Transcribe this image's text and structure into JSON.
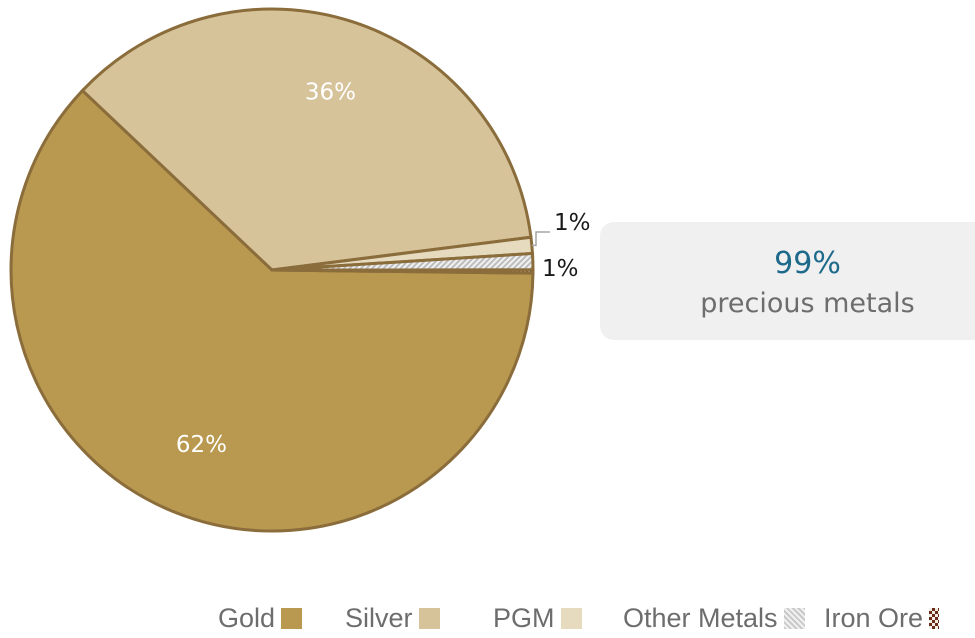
{
  "chart_data": {
    "type": "pie",
    "title": "",
    "slices": [
      {
        "label": "Gold",
        "value": 62,
        "data_label": "62%",
        "color": "#b9984f"
      },
      {
        "label": "Silver",
        "value": 36,
        "data_label": "36%",
        "color": "#d6c39a"
      },
      {
        "label": "PGM",
        "value": 1,
        "data_label": "1%",
        "color": "#e6dabf"
      },
      {
        "label": "Other Metals",
        "value": 1,
        "data_label": "1%",
        "color": "#cfcfcf"
      },
      {
        "label": "Iron Ore",
        "value": 0.2,
        "data_label": "",
        "color": "#6b2b1a"
      }
    ],
    "legend_position": "bottom",
    "border_color": "#8a6d3b"
  },
  "callout": {
    "value": "99%",
    "text": "precious metals",
    "value_color": "#1d6a8a"
  },
  "legend": {
    "items": [
      "Gold",
      "Silver",
      "PGM",
      "Other Metals",
      "Iron Ore"
    ]
  }
}
